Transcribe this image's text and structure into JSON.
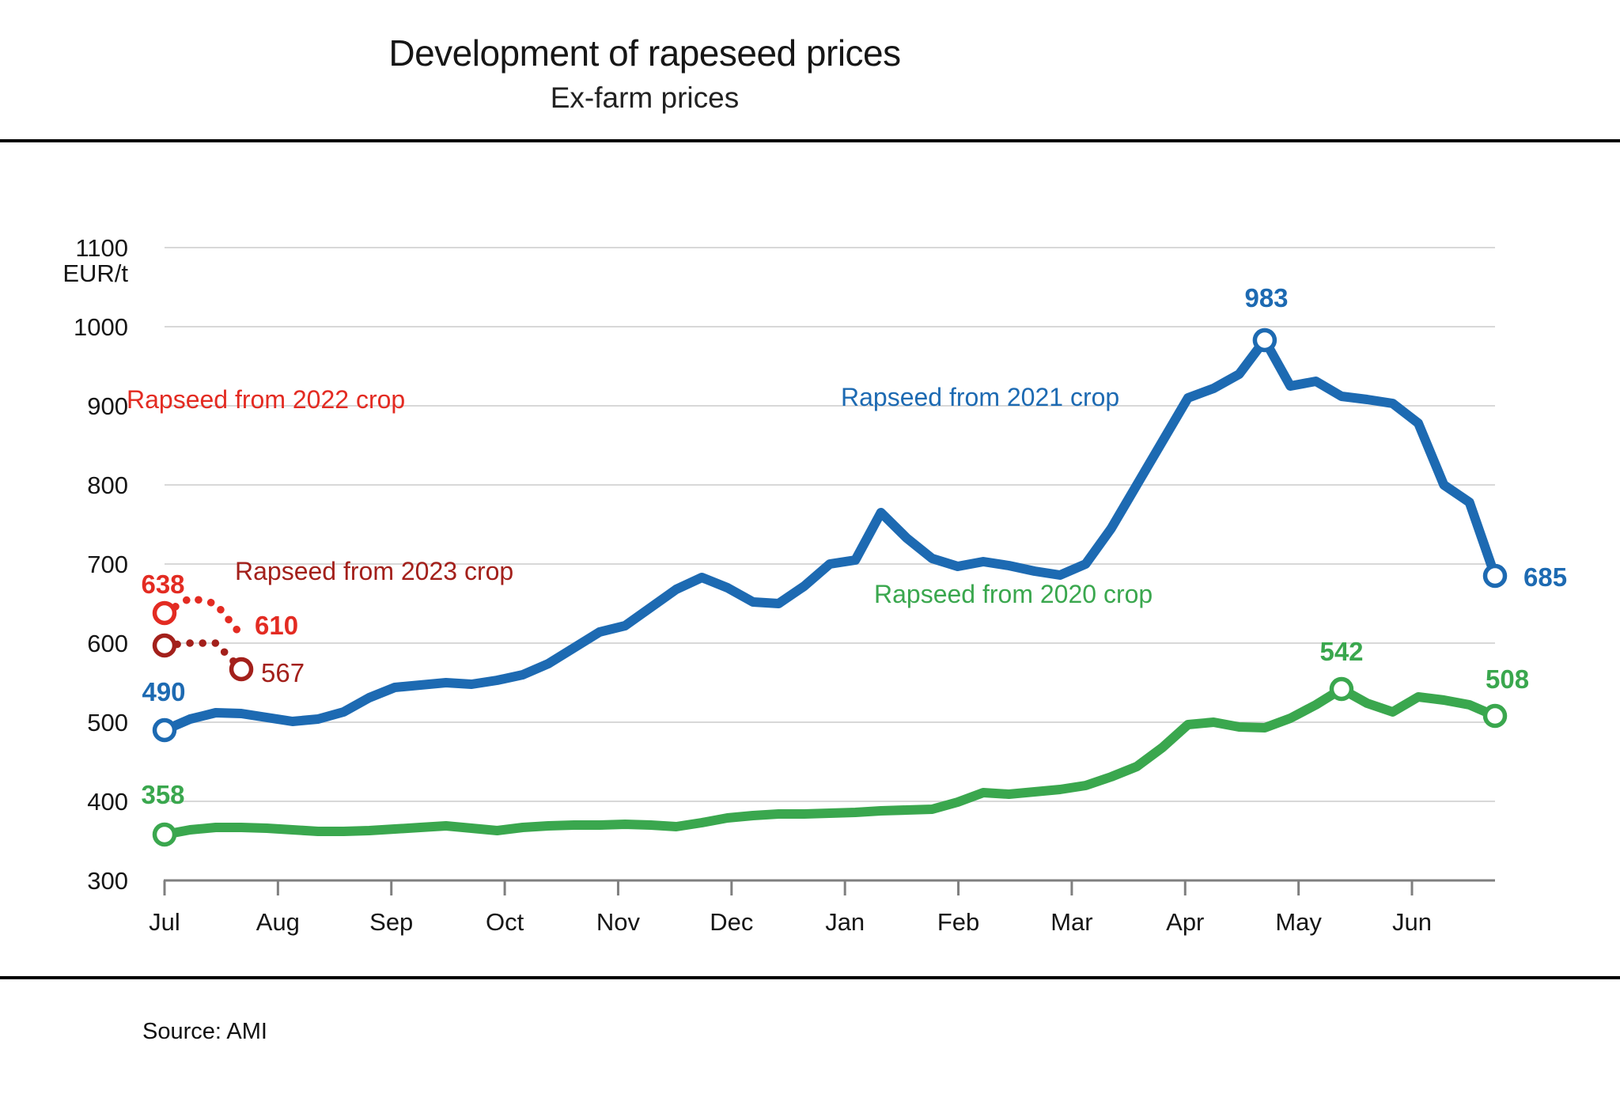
{
  "header": {
    "title": "Development of rapeseed prices",
    "subtitle": "Ex-farm prices"
  },
  "source": "Source: AMI",
  "axis": {
    "unit": "EUR/t",
    "y_ticks": [
      "1100",
      "1000",
      "900",
      "800",
      "700",
      "600",
      "500",
      "400",
      "300"
    ],
    "months": [
      "Jul",
      "Aug",
      "Sep",
      "Oct",
      "Nov",
      "Dec",
      "Jan",
      "Feb",
      "Mar",
      "Apr",
      "May",
      "Jun"
    ]
  },
  "chart_data": {
    "type": "line",
    "title": "Development of rapeseed prices",
    "subtitle": "Ex-farm prices",
    "ylabel": "EUR/t",
    "ylim": [
      300,
      1100
    ],
    "grid": "horizontal",
    "x_axis": "crop year weeks, months Jul through Jun",
    "legend_position": "inline labels next to lines",
    "series": [
      {
        "name": "rapeseed-2021-crop",
        "label": "Rapseed from 2021 crop",
        "color": "#1d6ab2",
        "style": "solid",
        "markers": [
          0,
          43,
          52
        ],
        "values": [
          490,
          504,
          512,
          511,
          506,
          501,
          504,
          513,
          531,
          544,
          547,
          550,
          548,
          553,
          560,
          574,
          594,
          614,
          622,
          645,
          668,
          683,
          670,
          652,
          650,
          672,
          700,
          705,
          765,
          733,
          707,
          697,
          703,
          698,
          691,
          686,
          700,
          745,
          800,
          855,
          910,
          922,
          940,
          983,
          925,
          931,
          912,
          908,
          903,
          878,
          800,
          778,
          685
        ]
      },
      {
        "name": "rapeseed-2020-crop",
        "label": "Rapseed from 2020 crop",
        "color": "#3aa74e",
        "style": "solid",
        "markers": [
          0,
          46,
          52
        ],
        "values": [
          358,
          364,
          367,
          367,
          366,
          364,
          362,
          362,
          363,
          365,
          367,
          369,
          366,
          363,
          367,
          369,
          370,
          370,
          371,
          370,
          368,
          373,
          379,
          382,
          384,
          384,
          385,
          386,
          388,
          389,
          390,
          399,
          411,
          409,
          412,
          415,
          420,
          431,
          444,
          468,
          497,
          500,
          494,
          493,
          505,
          522,
          542,
          524,
          513,
          532,
          528,
          522,
          508
        ]
      },
      {
        "name": "rapeseed-2022-crop",
        "label": "Rapseed from 2022 crop",
        "color": "#e32b22",
        "style": "dotted",
        "markers": [
          0
        ],
        "values": [
          638,
          657,
          650,
          610
        ]
      },
      {
        "name": "rapeseed-2023-crop",
        "label": "Rapseed from 2023 crop",
        "color": "#a3201b",
        "style": "dotted",
        "markers": [
          0,
          3
        ],
        "values": [
          597,
          600,
          600,
          567
        ]
      }
    ],
    "annotations": {
      "blue_start": "490",
      "blue_peak": "983",
      "blue_end": "685",
      "green_start": "358",
      "green_peak": "542",
      "green_end": "508",
      "red2022_start": "638",
      "red2022_end": "610",
      "red2023_end": "567"
    }
  }
}
